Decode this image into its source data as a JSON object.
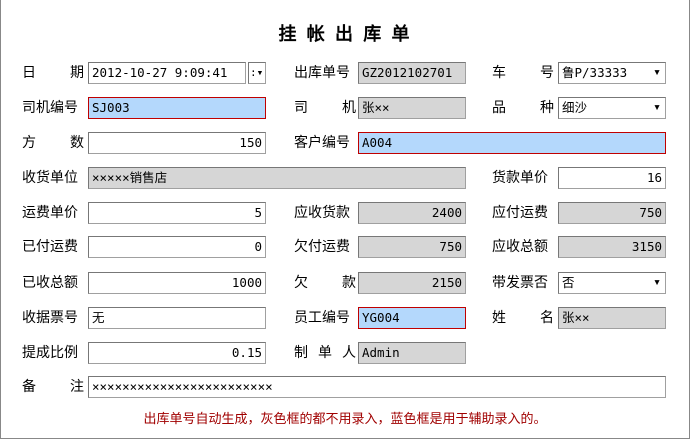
{
  "title": "挂 帐 出 库 单",
  "fields": [
    {
      "label": "日期",
      "value": "2012-10-27 9:09:41",
      "type": "datetime"
    },
    {
      "label": "出库单号",
      "value": "GZ2012102701",
      "type": "gray"
    },
    {
      "label": "车号",
      "value": "鲁P/33333",
      "type": "dropdown"
    },
    {
      "label": "司机编号",
      "value": "SJ003",
      "type": "blue"
    },
    {
      "label": "司机",
      "value": "张××",
      "type": "gray"
    },
    {
      "label": "品种",
      "value": "细沙",
      "type": "dropdown"
    },
    {
      "label": "方数",
      "value": "150",
      "type": "number"
    },
    {
      "label": "客户编号",
      "value": "A004",
      "type": "blue"
    },
    {
      "label": "收货单位",
      "value": "×××××销售店",
      "type": "gray"
    },
    {
      "label": "货款单价",
      "value": "16",
      "type": "number"
    },
    {
      "label": "运费单价",
      "value": "5",
      "type": "number"
    },
    {
      "label": "应收货款",
      "value": "2400",
      "type": "graynum"
    },
    {
      "label": "应付运费",
      "value": "750",
      "type": "graynum"
    },
    {
      "label": "已付运费",
      "value": "0",
      "type": "number"
    },
    {
      "label": "欠付运费",
      "value": "750",
      "type": "graynum"
    },
    {
      "label": "应收总额",
      "value": "3150",
      "type": "graynum"
    },
    {
      "label": "已收总额",
      "value": "1000",
      "type": "number"
    },
    {
      "label": "欠款",
      "value": "2150",
      "type": "graynum"
    },
    {
      "label": "带发票否",
      "value": "否",
      "type": "dropdown"
    },
    {
      "label": "收据票号",
      "value": "无",
      "type": "text"
    },
    {
      "label": "员工编号",
      "value": "YG004",
      "type": "blue"
    },
    {
      "label": "姓名",
      "value": "张××",
      "type": "gray"
    },
    {
      "label": "提成比例",
      "value": "0.15",
      "type": "number"
    },
    {
      "label": "制单人",
      "value": "Admin",
      "type": "gray"
    },
    {
      "label": "备注",
      "value": "××××××××××××××××××××××××",
      "type": "text"
    }
  ],
  "note": "出库单号自动生成，灰色框的都不用录入，蓝色框是用于辅助录入的。",
  "colors": {
    "blue_field": "#b4d8fc",
    "gray_field": "#d6d6d6",
    "note_text": "#a00000",
    "blue_border": "#c00000"
  }
}
